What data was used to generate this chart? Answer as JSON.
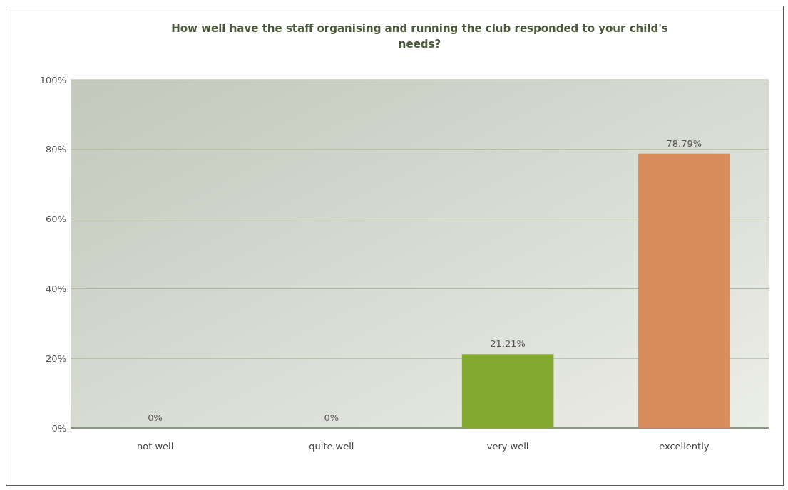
{
  "chart_data": {
    "type": "bar",
    "title": "How well have the staff organising and running the club responded to your child's needs?",
    "categories": [
      "not well",
      "quite well",
      "very well",
      "excellently"
    ],
    "values": [
      0,
      0,
      21.21,
      78.79
    ],
    "colors": [
      "#a9c6e6",
      "#e6b032",
      "#84aa32",
      "#d98c5c"
    ],
    "value_labels": [
      "0%",
      "0%",
      "21.21%",
      "78.79%"
    ],
    "ylim": [
      0,
      100
    ],
    "yticks": [
      {
        "value": 0,
        "label": "0%"
      },
      {
        "value": 20,
        "label": "20%"
      },
      {
        "value": 40,
        "label": "40%"
      },
      {
        "value": 60,
        "label": "60%"
      },
      {
        "value": 80,
        "label": "80%"
      },
      {
        "value": 100,
        "label": "100%"
      }
    ],
    "grid": "y"
  }
}
